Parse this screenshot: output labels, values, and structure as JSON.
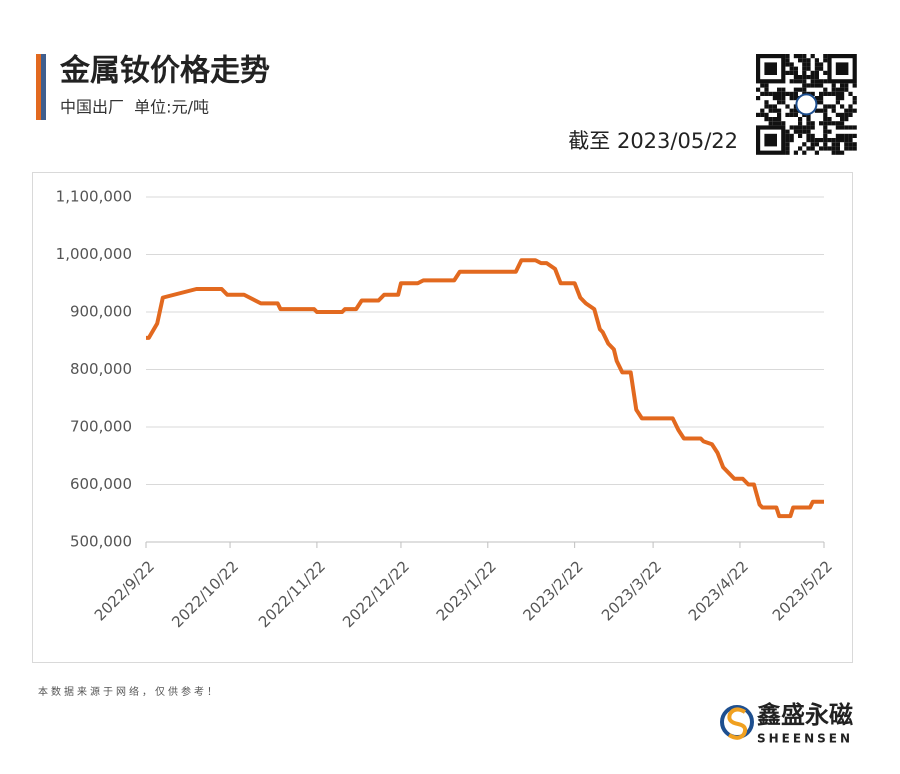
{
  "chart_data": {
    "type": "line",
    "title": "金属钕价格走势",
    "subtitle": "中国出厂  单位:元/吨",
    "date_note": "截至 2023/05/22",
    "source_note": "本数据来源于网络，仅供参考！",
    "brand": "鑫盛永磁",
    "brand_en": "SHEENSEN",
    "x": [
      "2022/9/22",
      "2022/9/23",
      "2022/9/26",
      "2022/9/28",
      "2022/10/10",
      "2022/10/19",
      "2022/10/21",
      "2022/10/27",
      "2022/10/29",
      "2022/11/2",
      "2022/11/8",
      "2022/11/9",
      "2022/11/21",
      "2022/11/22",
      "2022/12/1",
      "2022/12/2",
      "2022/12/6",
      "2022/12/8",
      "2022/12/14",
      "2022/12/16",
      "2022/12/21",
      "2022/12/22",
      "2022/12/28",
      "2022/12/30",
      "2023/1/10",
      "2023/1/12",
      "2023/2/1",
      "2023/2/3",
      "2023/2/8",
      "2023/2/10",
      "2023/2/12",
      "2023/2/15",
      "2023/2/17",
      "2023/2/22",
      "2023/2/24",
      "2023/2/26",
      "2023/3/1",
      "2023/3/3",
      "2023/3/4",
      "2023/3/6",
      "2023/3/8",
      "2023/3/9",
      "2023/3/11",
      "2023/3/14",
      "2023/3/16",
      "2023/3/18",
      "2023/3/29",
      "2023/3/31",
      "2023/4/2",
      "2023/4/8",
      "2023/4/9",
      "2023/4/12",
      "2023/4/14",
      "2023/4/16",
      "2023/4/20",
      "2023/4/23",
      "2023/4/25",
      "2023/4/27",
      "2023/4/29",
      "2023/4/30",
      "2023/5/5",
      "2023/5/6",
      "2023/5/10",
      "2023/5/11",
      "2023/5/17",
      "2023/5/18",
      "2023/5/22"
    ],
    "series": [
      {
        "name": "金属钕",
        "color": "#e2691f",
        "values": [
          855000,
          855000,
          880000,
          925000,
          940000,
          940000,
          930000,
          930000,
          925000,
          915000,
          915000,
          905000,
          905000,
          900000,
          900000,
          905000,
          905000,
          920000,
          920000,
          930000,
          930000,
          950000,
          950000,
          955000,
          955000,
          970000,
          970000,
          990000,
          990000,
          985000,
          985000,
          975000,
          950000,
          950000,
          925000,
          915000,
          905000,
          870000,
          865000,
          845000,
          835000,
          815000,
          795000,
          795000,
          730000,
          715000,
          715000,
          695000,
          680000,
          680000,
          675000,
          670000,
          655000,
          630000,
          610000,
          610000,
          600000,
          600000,
          565000,
          560000,
          560000,
          545000,
          545000,
          560000,
          560000,
          570000,
          570000
        ]
      }
    ],
    "xlim": [
      "2022/9/22",
      "2023/5/22"
    ],
    "xticks": [
      "2022/9/22",
      "2022/10/22",
      "2022/11/22",
      "2022/12/22",
      "2023/1/22",
      "2023/2/22",
      "2023/3/22",
      "2023/4/22",
      "2023/5/22"
    ],
    "ylim": [
      500000,
      1100000
    ],
    "yticks": [
      {
        "value": 500000,
        "label": "500,000"
      },
      {
        "value": 600000,
        "label": "600,000"
      },
      {
        "value": 700000,
        "label": "700,000"
      },
      {
        "value": 800000,
        "label": "800,000"
      },
      {
        "value": 900000,
        "label": "900,000"
      },
      {
        "value": 1000000,
        "label": "1,000,000"
      },
      {
        "value": 1100000,
        "label": "1,100,000"
      }
    ],
    "grid": true
  }
}
